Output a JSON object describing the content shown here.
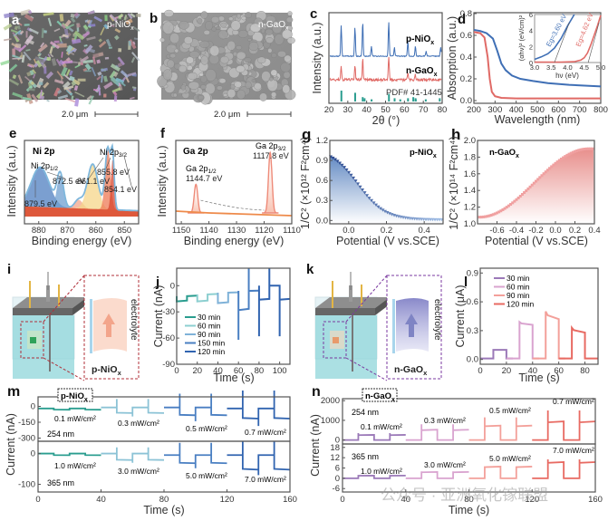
{
  "figure": {
    "panels": {
      "a": {
        "letter": "a",
        "label": "p-NiO",
        "sub": "x",
        "scalebar": "2.0 μm",
        "kind": "SEM image"
      },
      "b": {
        "letter": "b",
        "label": "n-GaO",
        "sub": "x",
        "scalebar": "2.0 μm",
        "kind": "SEM image"
      },
      "i": {
        "letter": "i",
        "label": "p-NiO",
        "sub": "x",
        "side_text": "electrolyte",
        "kind": "cell schematic",
        "accent": "#f3a58b"
      },
      "k": {
        "letter": "k",
        "label": "n-GaO",
        "sub": "x",
        "side_text": "electrolyte",
        "kind": "cell schematic",
        "accent": "#8f8fd0"
      }
    },
    "watermark": "公众号 · 亚洲氧化镓联盟"
  },
  "colors": {
    "nio_blue": "#3f6fb5",
    "gao_red": "#e06a66",
    "teal": "#2a9d8f",
    "light_blue": "#8cc3d6",
    "purple": "#9b79b8",
    "pink": "#d9a3cf",
    "salmon": "#f08a80"
  },
  "chart_data": [
    {
      "id": "c",
      "type": "line",
      "title": "",
      "xlabel": "2θ (°)",
      "ylabel": "Intensity (a.u.)",
      "xlim": [
        20,
        80
      ],
      "xticks": [
        20,
        30,
        40,
        50,
        60,
        70,
        80
      ],
      "series": [
        {
          "name": "p-NiOx",
          "color": "#3f6fb5",
          "peaks": [
            [
              26.5,
              0.9
            ],
            [
              33.8,
              0.85
            ],
            [
              37.9,
              1.0
            ],
            [
              42.5,
              0.3
            ],
            [
              51.7,
              1.0
            ],
            [
              54.7,
              0.25
            ],
            [
              61.8,
              0.45
            ],
            [
              65.8,
              0.3
            ],
            [
              71.5,
              0.15
            ],
            [
              79.2,
              0.25
            ]
          ]
        },
        {
          "name": "n-GaOx",
          "color": "#e06a66",
          "peaks": [
            [
              26.5,
              0.5
            ],
            [
              33.8,
              0.55
            ],
            [
              37.9,
              0.85
            ],
            [
              51.7,
              0.9
            ],
            [
              61.8,
              0.3
            ],
            [
              65.8,
              0.2
            ]
          ]
        },
        {
          "name": "PDF# 41-1445",
          "color": "#2a9d8f",
          "sticks": [
            [
              26.6,
              1.0
            ],
            [
              33.9,
              0.8
            ],
            [
              37.9,
              0.4
            ],
            [
              38.9,
              0.3
            ],
            [
              42.6,
              0.2
            ],
            [
              51.8,
              0.7
            ],
            [
              54.8,
              0.3
            ],
            [
              57.8,
              0.2
            ],
            [
              61.9,
              0.3
            ],
            [
              64.7,
              0.4
            ],
            [
              65.9,
              0.3
            ],
            [
              66.0,
              0.2
            ],
            [
              71.3,
              0.2
            ],
            [
              78.7,
              0.3
            ]
          ]
        }
      ],
      "legend_labels": [
        "p-NiOx",
        "n-GaOx",
        "PDF# 41-1445"
      ]
    },
    {
      "id": "d",
      "type": "line",
      "xlabel": "Wavelength (nm)",
      "ylabel": "Absorption (a.u.)",
      "xlim": [
        200,
        800
      ],
      "ylim": [
        0,
        0.8
      ],
      "xticks": [
        200,
        300,
        400,
        500,
        600,
        700,
        800
      ],
      "yticks": [
        0.0,
        0.2,
        0.4,
        0.6,
        0.8
      ],
      "series": [
        {
          "name": "p-NiOx",
          "color": "#3f6fb5",
          "x": [
            200,
            230,
            260,
            290,
            310,
            330,
            350,
            380,
            420,
            480,
            550,
            650,
            800
          ],
          "y": [
            0.65,
            0.64,
            0.62,
            0.57,
            0.46,
            0.34,
            0.28,
            0.23,
            0.2,
            0.18,
            0.16,
            0.145,
            0.13
          ]
        },
        {
          "name": "n-GaOx",
          "color": "#e06a66",
          "x": [
            200,
            230,
            250,
            265,
            275,
            285,
            300,
            330,
            400,
            500,
            800
          ],
          "y": [
            0.63,
            0.62,
            0.58,
            0.4,
            0.2,
            0.08,
            0.04,
            0.025,
            0.02,
            0.02,
            0.02
          ]
        }
      ],
      "inset": {
        "xlabel": "hν (eV)",
        "ylabel": "(αhν)² (eV/cm)²",
        "xlim": [
          3.0,
          5.0
        ],
        "ylim": [
          0,
          6
        ],
        "xticks": [
          3.0,
          3.5,
          4.0,
          4.5,
          5.0
        ],
        "yticks": [
          0,
          2,
          4,
          6
        ],
        "annotations": [
          {
            "text": "Eg=3.60 eV",
            "color": "#3f6fb5"
          },
          {
            "text": "Eg=4.62 eV",
            "color": "#e06a66"
          }
        ],
        "series": [
          {
            "name": "p-NiOx",
            "x": [
              3.0,
              3.2,
              3.4,
              3.6,
              3.8,
              4.0,
              4.2
            ],
            "y": [
              0.4,
              0.7,
              1.1,
              1.8,
              3.0,
              4.6,
              6.0
            ]
          },
          {
            "name": "n-GaOx",
            "x": [
              3.0,
              3.8,
              4.2,
              4.4,
              4.5,
              4.6,
              4.7,
              4.8,
              4.9,
              5.0
            ],
            "y": [
              0.05,
              0.05,
              0.1,
              0.3,
              0.6,
              1.2,
              2.2,
              3.4,
              4.6,
              5.9
            ]
          }
        ]
      }
    },
    {
      "id": "e",
      "type": "area",
      "title": "Ni 2p",
      "xlabel": "Binding energy (eV)",
      "ylabel": "Intensity (a.u.)",
      "xlim": [
        885,
        845
      ],
      "xticks": [
        880,
        870,
        860,
        850
      ],
      "annotations": [
        "Ni 2p1/2",
        "872.5 eV",
        "879.5 eV",
        "861.1 eV",
        "Ni 2p3/2",
        "855.8 eV",
        "854.1 eV"
      ],
      "peaks": [
        {
          "center": 879.5,
          "height": 0.55,
          "width": 4.5,
          "color": "#4f7fc0"
        },
        {
          "center": 872.5,
          "height": 0.45,
          "width": 1.6,
          "color": "#6f9fd0"
        },
        {
          "center": 866.0,
          "height": 0.12,
          "width": 2.0,
          "color": "#f3a58b"
        },
        {
          "center": 861.1,
          "height": 0.62,
          "width": 2.6,
          "color": "#f5d58a"
        },
        {
          "center": 855.8,
          "height": 0.85,
          "width": 1.3,
          "color": "#ee7a55"
        },
        {
          "center": 854.1,
          "height": 0.7,
          "width": 0.8,
          "color": "#d8452e"
        }
      ]
    },
    {
      "id": "f",
      "type": "line",
      "title": "Ga 2p",
      "xlabel": "Binding energy (eV)",
      "ylabel": "Intensity (a.u.)",
      "xlim": [
        1152,
        1110
      ],
      "xticks": [
        1150,
        1140,
        1130,
        1120,
        1110
      ],
      "annotations": [
        "Ga 2p1/2",
        "1144.7 eV",
        "Ga 2p3/2",
        "1117.8 eV"
      ],
      "peaks": [
        {
          "center": 1144.7,
          "height": 0.45,
          "width": 0.9
        },
        {
          "center": 1117.8,
          "height": 0.95,
          "width": 0.9
        }
      ],
      "color": "#ee8a78"
    },
    {
      "id": "g",
      "type": "scatter",
      "label": "p-NiOx",
      "xlabel": "Potential (V vs.SCE)",
      "ylabel": "1/C² (×10¹² F²cm⁴)",
      "xlim": [
        -0.1,
        0.5
      ],
      "ylim": [
        -0.05,
        1.2
      ],
      "xticks": [
        0.0,
        0.2,
        0.4
      ],
      "yticks": [
        0.0,
        0.3,
        0.6,
        0.9,
        1.2
      ],
      "curve": {
        "x0": -0.1,
        "x1": 0.5,
        "y_start": 1.08,
        "y_end": 0.01,
        "mid": 0.05,
        "k": 14
      },
      "color": "#3f6fb5"
    },
    {
      "id": "h",
      "type": "scatter",
      "label": "n-GaOx",
      "xlabel": "Potential (V vs.SCE)",
      "ylabel": "1/C² (×10¹⁴ F²cm⁴)",
      "xlim": [
        -0.8,
        0.4
      ],
      "ylim": [
        1.0,
        2.0
      ],
      "xticks": [
        -0.6,
        -0.4,
        -0.2,
        0.0,
        0.2,
        0.4
      ],
      "yticks": [
        1.0,
        1.2,
        1.4,
        1.6,
        1.8,
        2.0
      ],
      "curve": {
        "x0": -0.78,
        "x1": 0.4,
        "y_start": 1.08,
        "y_end": 1.9
      },
      "color": "#e06a66"
    },
    {
      "id": "j",
      "type": "line",
      "xlabel": "Time (s)",
      "ylabel": "Current (nA)",
      "xlim": [
        0,
        110
      ],
      "ylim": [
        -90,
        20
      ],
      "xticks": [
        0,
        20,
        40,
        60,
        80,
        100
      ],
      "yticks": [
        0,
        -30,
        -60,
        -90
      ],
      "legend": [
        {
          "name": "30 min",
          "color": "#2a9d8f"
        },
        {
          "name": "60 min",
          "color": "#8ccfd0"
        },
        {
          "name": "90 min",
          "color": "#7fb2d8"
        },
        {
          "name": "150 min",
          "color": "#4a7fc2"
        },
        {
          "name": "120 min",
          "color": "#3164b0"
        }
      ],
      "segments": [
        {
          "series": 0,
          "x": [
            0,
            20
          ],
          "dark": -12,
          "light": -18
        },
        {
          "series": 1,
          "x": [
            20,
            40
          ],
          "dark": -10,
          "light": -18
        },
        {
          "series": 2,
          "x": [
            40,
            60
          ],
          "dark": -8,
          "light": -20
        },
        {
          "series": 3,
          "x": [
            60,
            80
          ],
          "dark": -6,
          "light": -28,
          "spike_up": 20,
          "spike_down": -62
        },
        {
          "series": 4,
          "x": [
            80,
            110
          ],
          "dark": 0,
          "light": -16,
          "spike_up": 20,
          "spike_down": -58
        }
      ]
    },
    {
      "id": "l",
      "type": "line",
      "xlabel": "Time (s)",
      "ylabel": "Current (μA)",
      "xlim": [
        0,
        90
      ],
      "ylim": [
        -0.05,
        0.95
      ],
      "xticks": [
        0,
        20,
        40,
        60,
        80
      ],
      "yticks": [
        0.0,
        0.3,
        0.6,
        0.9
      ],
      "legend": [
        {
          "name": "30 min",
          "color": "#9b79b8"
        },
        {
          "name": "60 min",
          "color": "#d9a3cf"
        },
        {
          "name": "90 min",
          "color": "#f3a09a"
        },
        {
          "name": "120 min",
          "color": "#e86a62"
        }
      ],
      "pulses": [
        {
          "series": 0,
          "on": 10,
          "off": 20,
          "peak": 0.1,
          "plateau": 0.1
        },
        {
          "series": 1,
          "on": 30,
          "off": 40,
          "peak": 0.39,
          "plateau": 0.36
        },
        {
          "series": 2,
          "on": 50,
          "off": 60,
          "peak": 0.5,
          "plateau": 0.42
        },
        {
          "series": 3,
          "on": 70,
          "off": 80,
          "peak": 0.33,
          "plateau": 0.28
        }
      ]
    },
    {
      "id": "m",
      "type": "line",
      "label": "p-NiOx",
      "xlabel": "Time (s)",
      "ylabel": "Current (nA)",
      "xlim": [
        0,
        160
      ],
      "xticks": [
        0,
        40,
        80,
        120,
        160
      ],
      "subplots": [
        {
          "wavelength": "254 nm",
          "ylim": [
            -330,
            90
          ],
          "yticks": [
            0,
            -150,
            -300
          ],
          "intensities": [
            "0.1 mW/cm²",
            "0.3 mW/cm²",
            "0.5 mW/cm²",
            "0.7 mW/cm²"
          ],
          "blocks": [
            {
              "color": "#2a9d8f",
              "dark": -20,
              "light": -30,
              "spike": 0
            },
            {
              "color": "#8cc3d6",
              "dark": -10,
              "light": -60,
              "spike": 70
            },
            {
              "color": "#4a7fc2",
              "dark": -10,
              "light": -80,
              "spike": 120
            },
            {
              "color": "#3164b0",
              "dark": -20,
              "light": -110,
              "spike": 150
            }
          ]
        },
        {
          "wavelength": "365 nm",
          "ylim": [
            -125,
            40
          ],
          "yticks": [
            0,
            -100
          ],
          "intensities": [
            "1.0 mW/cm²",
            "3.0 mW/cm²",
            "5.0 mW/cm²",
            "7.0 mW/cm²"
          ],
          "blocks": [
            {
              "color": "#2a9d8f",
              "dark": 0,
              "light": -5,
              "spike": 0
            },
            {
              "color": "#8cc3d6",
              "dark": 0,
              "light": -20,
              "spike": 20
            },
            {
              "color": "#4a7fc2",
              "dark": -5,
              "light": -30,
              "spike": 35
            },
            {
              "color": "#3164b0",
              "dark": -5,
              "light": -50,
              "spike": 40
            }
          ]
        }
      ]
    },
    {
      "id": "n",
      "type": "line",
      "label": "n-GaOx",
      "xlabel": "Time (s)",
      "ylabel": "Current (nA)",
      "xlim": [
        0,
        160
      ],
      "xticks": [
        0,
        40,
        80,
        120,
        160
      ],
      "subplots": [
        {
          "wavelength": "254 nm",
          "ylim": [
            -200,
            2100
          ],
          "yticks": [
            0,
            1000,
            2000
          ],
          "intensities": [
            "0.1 mW/cm²",
            "0.3 mW/cm²",
            "0.5 mW/cm²",
            "0.7 mW/cm²"
          ],
          "blocks": [
            {
              "color": "#9b79b8",
              "dark": 0,
              "light": 250,
              "spike": 350
            },
            {
              "color": "#d9a3cf",
              "dark": 0,
              "light": 500,
              "spike": 800
            },
            {
              "color": "#f3a09a",
              "dark": 0,
              "light": 700,
              "spike": 1150
            },
            {
              "color": "#e86a62",
              "dark": 0,
              "light": 900,
              "spike": 1500
            }
          ]
        },
        {
          "wavelength": "365 nm",
          "ylim": [
            -8,
            20
          ],
          "yticks": [
            18,
            12,
            6,
            0,
            -6
          ],
          "intensities": [
            "1.0 mW/cm²",
            "3.0 mW/cm²",
            "5.0 mW/cm²",
            "7.0 mW/cm²"
          ],
          "blocks": [
            {
              "color": "#9b79b8",
              "dark": 0,
              "light": 1.5,
              "spike": 2
            },
            {
              "color": "#d9a3cf",
              "dark": 0,
              "light": 3.5,
              "spike": 4
            },
            {
              "color": "#f3a09a",
              "dark": 0,
              "light": 6.5,
              "spike": 7
            },
            {
              "color": "#e86a62",
              "dark": 0,
              "light": 9,
              "spike": 11
            }
          ]
        }
      ]
    }
  ]
}
